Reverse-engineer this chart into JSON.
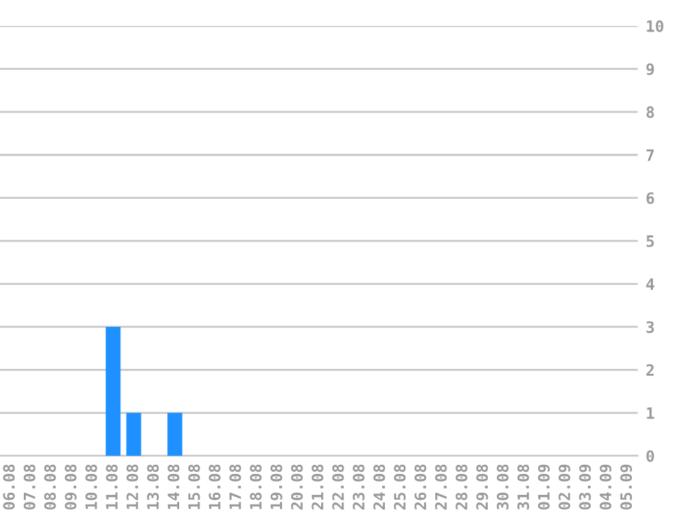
{
  "chart_data": {
    "type": "bar",
    "categories": [
      "06.08",
      "07.08",
      "08.08",
      "09.08",
      "10.08",
      "11.08",
      "12.08",
      "13.08",
      "14.08",
      "15.08",
      "16.08",
      "17.08",
      "18.08",
      "19.08",
      "20.08",
      "21.08",
      "22.08",
      "23.08",
      "24.08",
      "25.08",
      "26.08",
      "27.08",
      "28.08",
      "29.08",
      "30.08",
      "31.08",
      "01.09",
      "02.09",
      "03.09",
      "04.09",
      "05.09"
    ],
    "values": [
      0,
      0,
      0,
      0,
      0,
      3,
      1,
      0,
      1,
      0,
      0,
      0,
      0,
      0,
      0,
      0,
      0,
      0,
      0,
      0,
      0,
      0,
      0,
      0,
      0,
      0,
      0,
      0,
      0,
      0,
      0
    ],
    "color": "#1e90ff",
    "ylim": [
      0,
      10
    ],
    "yticks": [
      0,
      1,
      2,
      3,
      4,
      5,
      6,
      7,
      8,
      9,
      10
    ],
    "grid": "y"
  }
}
